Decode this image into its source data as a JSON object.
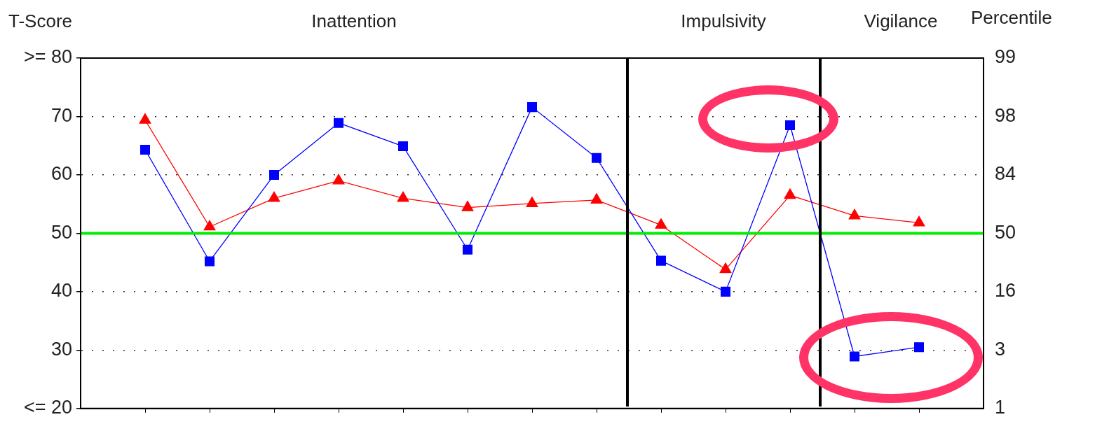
{
  "chart_data": {
    "type": "line",
    "ylabel": "T-Score",
    "y2label": "Percentile",
    "categories": [
      null,
      null,
      null,
      null,
      null,
      null,
      null,
      null,
      null,
      null,
      null,
      null,
      null
    ],
    "ylim": [
      20,
      80
    ],
    "yticks": [
      {
        "value": 20,
        "label": "<= 20"
      },
      30,
      40,
      50,
      60,
      70,
      {
        "value": 80,
        "label": ">= 80"
      }
    ],
    "series": [
      {
        "color": "#0000ff",
        "marker": "square",
        "values": [
          64.3,
          45.2,
          60,
          68.9,
          64.9,
          47.2,
          71.6,
          62.9,
          45.3,
          40,
          68.5,
          28.9,
          30.5
        ]
      },
      {
        "color": "#ff0000",
        "marker": "triangle",
        "values": [
          69.4,
          51.1,
          56,
          59,
          56,
          54.4,
          55.1,
          55.7,
          51.4,
          43.8,
          56.5,
          53,
          51.8
        ]
      }
    ],
    "ref_lines": [
      {
        "axis": "y",
        "value": 50,
        "color": "#00ee00"
      }
    ],
    "annotations": [
      "Inattention",
      "Impulsivity",
      "Vigilance",
      "1",
      "3",
      "16",
      "50",
      "84",
      "98",
      "99"
    ],
    "grid": "y",
    "tick_labels": "y"
  }
}
